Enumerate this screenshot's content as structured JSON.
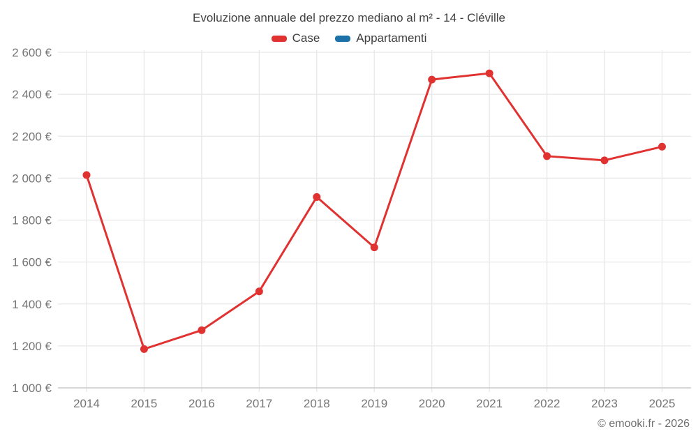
{
  "footer": "© emooki.fr - 2026",
  "chart_data": {
    "type": "line",
    "title": "Evoluzione annuale del prezzo mediano al m² - 14 - Cléville",
    "categories": [
      "2014",
      "2015",
      "2016",
      "2017",
      "2018",
      "2019",
      "2020",
      "2021",
      "2022",
      "2023",
      "2025"
    ],
    "series": [
      {
        "name": "Case",
        "color": "#e03231",
        "values": [
          2015,
          1185,
          1275,
          1460,
          1910,
          1670,
          2470,
          2500,
          2105,
          2085,
          2150
        ]
      },
      {
        "name": "Appartamenti",
        "color": "#1c72a8",
        "values": []
      }
    ],
    "xlabel": "",
    "ylabel": "",
    "ylim": [
      1000,
      2600
    ],
    "y_tick_step": 200,
    "y_tick_values": [
      1000,
      1200,
      1400,
      1600,
      1800,
      2000,
      2200,
      2400,
      2600
    ],
    "y_tick_labels": [
      "1 000 €",
      "1 200 €",
      "1 400 €",
      "1 600 €",
      "1 800 €",
      "2 000 €",
      "2 200 €",
      "2 400 €",
      "2 600 €"
    ],
    "grid": true,
    "legend_position": "top"
  },
  "colors": {
    "grid_line": "#e7e7e7",
    "axis_line": "#cbcbcb",
    "tick_label": "#757575",
    "title_text": "#3f3f3f"
  }
}
